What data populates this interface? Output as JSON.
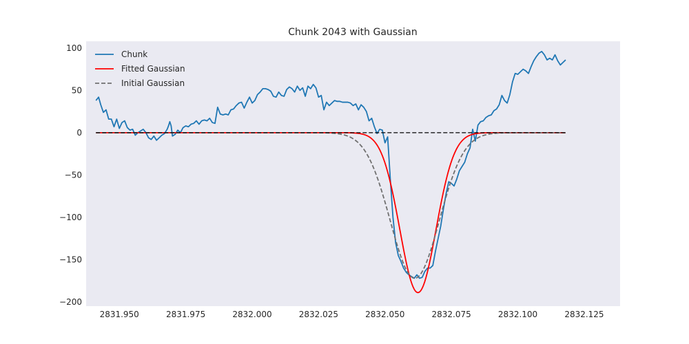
{
  "chart_data": {
    "type": "line",
    "title": "Chunk 2043 with Gaussian",
    "xlabel": "",
    "ylabel": "",
    "xlim": [
      2831.9375,
      2832.1385
    ],
    "ylim": [
      -205,
      108
    ],
    "grid": false,
    "legend_position": "top-left",
    "x_ticks": [
      2831.95,
      2831.975,
      2832.0,
      2832.025,
      2832.05,
      2832.075,
      2832.1,
      2832.125
    ],
    "x_tick_labels": [
      "2831.950",
      "2831.975",
      "2832.000",
      "2832.025",
      "2832.050",
      "2832.075",
      "2832.100",
      "2832.125"
    ],
    "y_ticks": [
      100,
      50,
      0,
      -50,
      -100,
      -150,
      -200
    ],
    "y_tick_labels": [
      "100",
      "50",
      "0",
      "−50",
      "−100",
      "−150",
      "−200"
    ],
    "series": [
      {
        "name": "Chunk",
        "color": "#1f77b4",
        "style": "solid",
        "points": [
          [
            2831.9412,
            38
          ],
          [
            2831.9422,
            42
          ],
          [
            2831.943,
            33
          ],
          [
            2831.944,
            24
          ],
          [
            2831.945,
            27
          ],
          [
            2831.946,
            16
          ],
          [
            2831.947,
            16
          ],
          [
            2831.948,
            7
          ],
          [
            2831.949,
            16
          ],
          [
            2831.95,
            5
          ],
          [
            2831.951,
            12
          ],
          [
            2831.952,
            14
          ],
          [
            2831.953,
            6
          ],
          [
            2831.954,
            3
          ],
          [
            2831.955,
            4
          ],
          [
            2831.956,
            -3
          ],
          [
            2831.957,
            0
          ],
          [
            2831.958,
            2
          ],
          [
            2831.959,
            4
          ],
          [
            2831.96,
            0
          ],
          [
            2831.961,
            -6
          ],
          [
            2831.962,
            -8
          ],
          [
            2831.963,
            -4
          ],
          [
            2831.964,
            -9
          ],
          [
            2831.965,
            -6
          ],
          [
            2831.966,
            -3
          ],
          [
            2831.967,
            -1
          ],
          [
            2831.968,
            4
          ],
          [
            2831.9685,
            8
          ],
          [
            2831.969,
            13
          ],
          [
            2831.9695,
            8
          ],
          [
            2831.97,
            -4
          ],
          [
            2831.971,
            -2
          ],
          [
            2831.972,
            3
          ],
          [
            2831.973,
            0
          ],
          [
            2831.974,
            6
          ],
          [
            2831.975,
            8
          ],
          [
            2831.976,
            7
          ],
          [
            2831.977,
            10
          ],
          [
            2831.978,
            11
          ],
          [
            2831.979,
            14
          ],
          [
            2831.98,
            10
          ],
          [
            2831.981,
            14
          ],
          [
            2831.982,
            15
          ],
          [
            2831.983,
            14
          ],
          [
            2831.984,
            17
          ],
          [
            2831.985,
            12
          ],
          [
            2831.986,
            11
          ],
          [
            2831.987,
            30
          ],
          [
            2831.988,
            22
          ],
          [
            2831.989,
            21
          ],
          [
            2831.99,
            22
          ],
          [
            2831.991,
            21
          ],
          [
            2831.992,
            27
          ],
          [
            2831.993,
            28
          ],
          [
            2831.994,
            32
          ],
          [
            2831.995,
            35
          ],
          [
            2831.996,
            36
          ],
          [
            2831.997,
            29
          ],
          [
            2831.998,
            36
          ],
          [
            2831.999,
            42
          ],
          [
            2832.0,
            35
          ],
          [
            2832.001,
            38
          ],
          [
            2832.002,
            45
          ],
          [
            2832.003,
            48
          ],
          [
            2832.004,
            52
          ],
          [
            2832.005,
            52
          ],
          [
            2832.006,
            51
          ],
          [
            2832.007,
            49
          ],
          [
            2832.008,
            43
          ],
          [
            2832.009,
            42
          ],
          [
            2832.01,
            48
          ],
          [
            2832.011,
            44
          ],
          [
            2832.012,
            43
          ],
          [
            2832.013,
            51
          ],
          [
            2832.014,
            54
          ],
          [
            2832.015,
            52
          ],
          [
            2832.016,
            48
          ],
          [
            2832.017,
            55
          ],
          [
            2832.018,
            50
          ],
          [
            2832.019,
            53
          ],
          [
            2832.02,
            43
          ],
          [
            2832.021,
            55
          ],
          [
            2832.022,
            52
          ],
          [
            2832.023,
            57
          ],
          [
            2832.024,
            53
          ],
          [
            2832.025,
            42
          ],
          [
            2832.026,
            44
          ],
          [
            2832.027,
            27
          ],
          [
            2832.028,
            36
          ],
          [
            2832.029,
            32
          ],
          [
            2832.03,
            35
          ],
          [
            2832.031,
            38
          ],
          [
            2832.032,
            37
          ],
          [
            2832.033,
            37
          ],
          [
            2832.034,
            36
          ],
          [
            2832.035,
            36
          ],
          [
            2832.036,
            36
          ],
          [
            2832.037,
            35
          ],
          [
            2832.038,
            32
          ],
          [
            2832.039,
            34
          ],
          [
            2832.04,
            27
          ],
          [
            2832.041,
            33
          ],
          [
            2832.042,
            30
          ],
          [
            2832.043,
            25
          ],
          [
            2832.044,
            14
          ],
          [
            2832.045,
            17
          ],
          [
            2832.046,
            7
          ],
          [
            2832.047,
            -1
          ],
          [
            2832.048,
            4
          ],
          [
            2832.049,
            3
          ],
          [
            2832.05,
            -12
          ],
          [
            2832.051,
            -5
          ],
          [
            2832.052,
            -55
          ],
          [
            2832.053,
            -100
          ],
          [
            2832.054,
            -130
          ],
          [
            2832.055,
            -145
          ],
          [
            2832.056,
            -152
          ],
          [
            2832.057,
            -160
          ],
          [
            2832.058,
            -165
          ],
          [
            2832.059,
            -168
          ],
          [
            2832.06,
            -170
          ],
          [
            2832.061,
            -172
          ],
          [
            2832.062,
            -168
          ],
          [
            2832.063,
            -172
          ],
          [
            2832.064,
            -171
          ],
          [
            2832.065,
            -164
          ],
          [
            2832.066,
            -160
          ],
          [
            2832.067,
            -160
          ],
          [
            2832.068,
            -157
          ],
          [
            2832.069,
            -140
          ],
          [
            2832.07,
            -125
          ],
          [
            2832.071,
            -110
          ],
          [
            2832.072,
            -90
          ],
          [
            2832.073,
            -72
          ],
          [
            2832.074,
            -58
          ],
          [
            2832.075,
            -60
          ],
          [
            2832.076,
            -63
          ],
          [
            2832.077,
            -55
          ],
          [
            2832.078,
            -45
          ],
          [
            2832.079,
            -40
          ],
          [
            2832.08,
            -35
          ],
          [
            2832.081,
            -25
          ],
          [
            2832.082,
            -18
          ],
          [
            2832.083,
            4
          ],
          [
            2832.084,
            -10
          ],
          [
            2832.085,
            9
          ],
          [
            2832.086,
            13
          ],
          [
            2832.087,
            14
          ],
          [
            2832.088,
            18
          ],
          [
            2832.089,
            20
          ],
          [
            2832.09,
            21
          ],
          [
            2832.091,
            26
          ],
          [
            2832.092,
            28
          ],
          [
            2832.093,
            33
          ],
          [
            2832.094,
            44
          ],
          [
            2832.095,
            38
          ],
          [
            2832.096,
            35
          ],
          [
            2832.097,
            45
          ],
          [
            2832.098,
            60
          ],
          [
            2832.099,
            70
          ],
          [
            2832.1,
            69
          ],
          [
            2832.101,
            72
          ],
          [
            2832.102,
            75
          ],
          [
            2832.103,
            73
          ],
          [
            2832.104,
            70
          ],
          [
            2832.105,
            78
          ],
          [
            2832.106,
            85
          ],
          [
            2832.107,
            90
          ],
          [
            2832.108,
            94
          ],
          [
            2832.109,
            96
          ],
          [
            2832.11,
            92
          ],
          [
            2832.111,
            86
          ],
          [
            2832.112,
            88
          ],
          [
            2832.113,
            86
          ],
          [
            2832.114,
            92
          ],
          [
            2832.115,
            85
          ],
          [
            2832.116,
            80
          ],
          [
            2832.117,
            83
          ],
          [
            2832.118,
            86
          ]
        ]
      },
      {
        "name": "Fitted Gaussian",
        "color": "#ff0000",
        "style": "solid",
        "gaussian": {
          "amplitude": -189,
          "center": 2832.0624,
          "sigma": 0.0068
        }
      },
      {
        "name": "Initial Gaussian",
        "color": "#707070",
        "style": "dashed",
        "gaussian": {
          "amplitude": -172,
          "center": 2832.0612,
          "sigma": 0.0092
        }
      }
    ],
    "baseline": {
      "color": "#000000",
      "style": "dashed",
      "y": 0
    }
  }
}
